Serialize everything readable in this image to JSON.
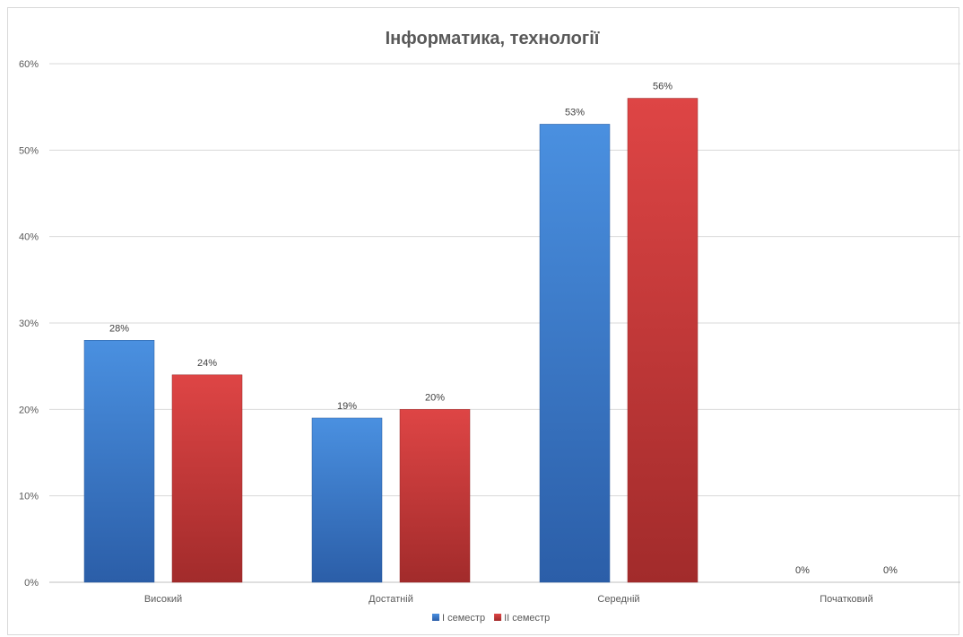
{
  "chart_data": {
    "type": "bar",
    "title": "Інформатика, технології",
    "categories": [
      "Високий",
      "Достатній",
      "Середній",
      "Початковий"
    ],
    "series": [
      {
        "name": "І семестр",
        "values": [
          28,
          19,
          53,
          0
        ],
        "labels": [
          "28%",
          "19%",
          "53%",
          "0%"
        ],
        "color": "#3c7fd0"
      },
      {
        "name": "ІІ семестр",
        "values": [
          24,
          20,
          56,
          0
        ],
        "labels": [
          "24%",
          "20%",
          "56%",
          "0%"
        ],
        "color": "#c9393a"
      }
    ],
    "ylim": [
      0,
      60
    ],
    "yticks": [
      "0%",
      "10%",
      "20%",
      "30%",
      "40%",
      "50%",
      "60%"
    ],
    "grid": true,
    "legend": "bottom"
  }
}
